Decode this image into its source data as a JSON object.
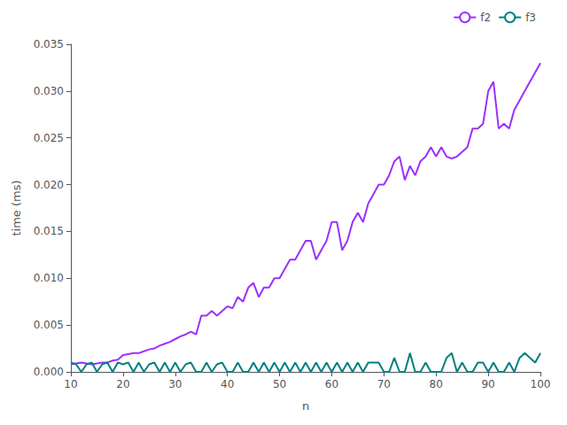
{
  "chart_data": {
    "type": "line",
    "xlabel": "n",
    "ylabel": "time (ms)",
    "x": [
      10,
      11,
      12,
      13,
      14,
      15,
      16,
      17,
      18,
      19,
      20,
      21,
      22,
      23,
      24,
      25,
      26,
      27,
      28,
      29,
      30,
      31,
      32,
      33,
      34,
      35,
      36,
      37,
      38,
      39,
      40,
      41,
      42,
      43,
      44,
      45,
      46,
      47,
      48,
      49,
      50,
      51,
      52,
      53,
      54,
      55,
      56,
      57,
      58,
      59,
      60,
      61,
      62,
      63,
      64,
      65,
      66,
      67,
      68,
      69,
      70,
      71,
      72,
      73,
      74,
      75,
      76,
      77,
      78,
      79,
      80,
      81,
      82,
      83,
      84,
      85,
      86,
      87,
      88,
      89,
      90,
      91,
      92,
      93,
      94,
      95,
      96,
      97,
      98,
      99,
      100
    ],
    "series": [
      {
        "name": "f2",
        "color": "#9b30ff",
        "values": [
          0.0008,
          0.0009,
          0.001,
          0.0009,
          0.0008,
          0.0009,
          0.001,
          0.001,
          0.0012,
          0.0013,
          0.0018,
          0.0019,
          0.002,
          0.002,
          0.0022,
          0.0024,
          0.0025,
          0.0028,
          0.003,
          0.0032,
          0.0035,
          0.0038,
          0.004,
          0.0043,
          0.004,
          0.006,
          0.006,
          0.0065,
          0.006,
          0.0065,
          0.007,
          0.0068,
          0.008,
          0.0075,
          0.009,
          0.0095,
          0.008,
          0.009,
          0.009,
          0.01,
          0.01,
          0.011,
          0.012,
          0.012,
          0.013,
          0.014,
          0.014,
          0.012,
          0.013,
          0.014,
          0.016,
          0.016,
          0.013,
          0.014,
          0.016,
          0.017,
          0.016,
          0.018,
          0.019,
          0.02,
          0.02,
          0.021,
          0.0225,
          0.023,
          0.0205,
          0.022,
          0.021,
          0.0225,
          0.023,
          0.024,
          0.023,
          0.024,
          0.023,
          0.0228,
          0.023,
          0.0235,
          0.024,
          0.026,
          0.026,
          0.0265,
          0.03,
          0.031,
          0.026,
          0.0265,
          0.026,
          0.028,
          0.029,
          0.03,
          0.031,
          0.032,
          0.033
        ]
      },
      {
        "name": "f3",
        "color": "#008080",
        "values": [
          0.001,
          0.0008,
          0.0,
          0.0008,
          0.001,
          0.0,
          0.0008,
          0.001,
          0.0,
          0.001,
          0.0008,
          0.001,
          0.0,
          0.001,
          0.0,
          0.0008,
          0.001,
          0.0,
          0.001,
          0.0,
          0.001,
          0.0,
          0.0008,
          0.001,
          0.0,
          0.0,
          0.001,
          0.0,
          0.0008,
          0.001,
          0.0,
          0.0,
          0.001,
          0.0,
          0.0,
          0.001,
          0.0,
          0.001,
          0.0,
          0.001,
          0.0,
          0.001,
          0.0,
          0.001,
          0.0,
          0.001,
          0.0,
          0.001,
          0.0,
          0.001,
          0.0,
          0.001,
          0.0,
          0.001,
          0.0,
          0.001,
          0.0,
          0.001,
          0.001,
          0.001,
          0.0,
          0.0,
          0.0015,
          0.0,
          0.0,
          0.002,
          0.0,
          0.0,
          0.001,
          0.0,
          0.0,
          0.0,
          0.0015,
          0.002,
          0.0,
          0.001,
          0.0,
          0.0,
          0.001,
          0.001,
          0.0,
          0.001,
          0.0,
          0.0,
          0.001,
          0.0,
          0.0015,
          0.002,
          0.0015,
          0.001,
          0.002
        ]
      }
    ],
    "xlim": [
      10,
      100
    ],
    "xticks": [
      10,
      20,
      30,
      40,
      50,
      60,
      70,
      80,
      90,
      100
    ],
    "ylim": [
      0,
      0.035
    ],
    "yticks": [
      {
        "value": 0,
        "label": "0.000"
      },
      0.005,
      {
        "value": 0.01,
        "label": "0.010"
      },
      0.015,
      {
        "value": 0.02,
        "label": "0.020"
      },
      0.025,
      {
        "value": 0.03,
        "label": "0.030"
      },
      0.035
    ],
    "grid": false,
    "legend": "upper right"
  }
}
